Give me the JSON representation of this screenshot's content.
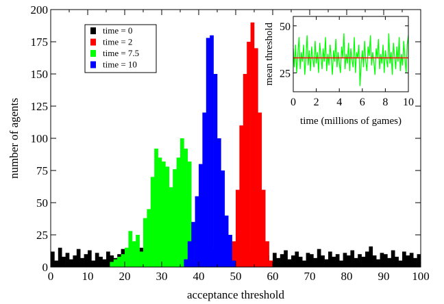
{
  "chart_data": [
    {
      "type": "bar",
      "xlabel": "acceptance threshold",
      "ylabel": "number of agents",
      "xlim": [
        0,
        100
      ],
      "ylim": [
        0,
        200
      ],
      "xticks": [
        "0",
        "10",
        "20",
        "30",
        "40",
        "50",
        "60",
        "70",
        "80",
        "90",
        "100"
      ],
      "yticks": [
        "0",
        "25",
        "50",
        "75",
        "100",
        "125",
        "150",
        "175",
        "200"
      ],
      "bin_width": 1,
      "legend_position": "top-left",
      "series": [
        {
          "name": "time = 0",
          "color": "#000000",
          "x": [
            0,
            1,
            2,
            3,
            4,
            5,
            6,
            7,
            8,
            9,
            10,
            11,
            12,
            13,
            14,
            15,
            16,
            17,
            18,
            19,
            20,
            21,
            22,
            23,
            24,
            25,
            26,
            27,
            28,
            29,
            30,
            31,
            32,
            33,
            34,
            35,
            36,
            37,
            38,
            39,
            40,
            41,
            42,
            43,
            44,
            45,
            46,
            47,
            48,
            49,
            50,
            51,
            52,
            53,
            54,
            55,
            56,
            57,
            58,
            59,
            60,
            61,
            62,
            63,
            64,
            65,
            66,
            67,
            68,
            69,
            70,
            71,
            72,
            73,
            74,
            75,
            76,
            77,
            78,
            79,
            80,
            81,
            82,
            83,
            84,
            85,
            86,
            87,
            88,
            89,
            90,
            91,
            92,
            93,
            94,
            95,
            96,
            97,
            98,
            99
          ],
          "values": [
            12,
            5,
            15,
            8,
            11,
            6,
            9,
            14,
            7,
            10,
            13,
            5,
            11,
            8,
            6,
            12,
            9,
            7,
            10,
            14,
            8,
            6,
            11,
            9,
            15,
            12,
            5,
            10,
            7,
            9,
            11,
            6,
            13,
            8,
            10,
            7,
            12,
            9,
            6,
            11,
            8,
            10,
            5,
            14,
            9,
            7,
            12,
            6,
            10,
            8,
            11,
            9,
            7,
            13,
            6,
            10,
            8,
            12,
            9,
            5,
            11,
            7,
            10,
            13,
            6,
            9,
            12,
            8,
            5,
            11,
            10,
            7,
            14,
            9,
            6,
            12,
            8,
            10,
            5,
            11,
            9,
            13,
            7,
            10,
            8,
            12,
            16,
            9,
            6,
            11,
            10,
            7,
            13,
            8,
            5,
            12,
            9,
            11,
            7,
            10
          ]
        },
        {
          "name": "time = 2",
          "color": "#ff0000",
          "x": [
            49,
            50,
            51,
            52,
            53,
            54,
            55,
            56,
            57,
            58,
            59
          ],
          "values": [
            20,
            60,
            110,
            150,
            175,
            190,
            170,
            120,
            60,
            20,
            5
          ]
        },
        {
          "name": "time = 7.5",
          "color": "#00ff00",
          "x": [
            16,
            17,
            18,
            19,
            20,
            21,
            22,
            23,
            24,
            25,
            26,
            27,
            28,
            29,
            30,
            31,
            32,
            33,
            34,
            35,
            36,
            37,
            38,
            39
          ],
          "values": [
            4,
            6,
            8,
            10,
            15,
            28,
            20,
            25,
            12,
            38,
            45,
            70,
            92,
            85,
            82,
            78,
            62,
            76,
            85,
            100,
            92,
            82,
            25,
            8
          ]
        },
        {
          "name": "time = 10",
          "color": "#0000ff",
          "x": [
            36,
            37,
            38,
            39,
            40,
            41,
            42,
            43,
            44,
            45,
            46,
            47,
            48,
            49
          ],
          "values": [
            6,
            20,
            35,
            55,
            80,
            120,
            178,
            180,
            150,
            100,
            75,
            40,
            25,
            5
          ]
        }
      ]
    },
    {
      "type": "line",
      "inset": true,
      "xlabel": "time (millions of games)",
      "ylabel": "mean threshold",
      "xlim": [
        0,
        10
      ],
      "ylim": [
        15,
        55
      ],
      "xticks": [
        "0",
        "2",
        "4",
        "6",
        "8",
        "10"
      ],
      "yticks": [
        "25",
        "50"
      ],
      "series": [
        {
          "name": "",
          "color": "#00ff00",
          "x": [
            0,
            0.1,
            0.2,
            0.3,
            0.4,
            0.5,
            0.6,
            0.7,
            0.8,
            0.9,
            1,
            1.1,
            1.2,
            1.3,
            1.4,
            1.5,
            1.6,
            1.7,
            1.8,
            1.9,
            2,
            2.1,
            2.2,
            2.3,
            2.4,
            2.5,
            2.6,
            2.7,
            2.8,
            2.9,
            3,
            3.1,
            3.2,
            3.3,
            3.4,
            3.5,
            3.6,
            3.7,
            3.8,
            3.9,
            4,
            4.1,
            4.2,
            4.3,
            4.4,
            4.5,
            4.6,
            4.7,
            4.8,
            4.9,
            5,
            5.1,
            5.2,
            5.3,
            5.4,
            5.5,
            5.6,
            5.7,
            5.8,
            5.9,
            6,
            6.1,
            6.2,
            6.3,
            6.4,
            6.5,
            6.6,
            6.7,
            6.8,
            6.9,
            7,
            7.1,
            7.2,
            7.3,
            7.4,
            7.5,
            7.6,
            7.7,
            7.8,
            7.9,
            8,
            8.1,
            8.2,
            8.3,
            8.4,
            8.5,
            8.6,
            8.7,
            8.8,
            8.9,
            9,
            9.1,
            9.2,
            9.3,
            9.4,
            9.5,
            9.6,
            9.7,
            9.8,
            9.9,
            10
          ],
          "values": [
            38,
            28,
            40,
            25,
            35,
            44,
            27,
            36,
            31,
            40,
            24,
            33,
            45,
            29,
            37,
            26,
            39,
            32,
            28,
            42,
            30,
            36,
            25,
            41,
            34,
            27,
            38,
            31,
            44,
            26,
            35,
            29,
            40,
            33,
            24,
            37,
            31,
            43,
            28,
            36,
            30,
            25,
            39,
            33,
            46,
            27,
            35,
            30,
            41,
            26,
            38,
            32,
            28,
            44,
            25,
            36,
            33,
            40,
            18,
            30,
            37,
            28,
            42,
            31,
            26,
            39,
            34,
            45,
            29,
            36,
            31,
            24,
            38,
            33,
            43,
            27,
            35,
            30,
            40,
            25,
            37,
            32,
            28,
            46,
            30,
            36,
            24,
            41,
            34,
            27,
            39,
            31,
            44,
            26,
            35,
            29,
            42,
            33,
            25,
            40,
            45
          ]
        },
        {
          "name": "",
          "color": "#ff0000",
          "x": [
            0,
            10
          ],
          "values": [
            33,
            33
          ]
        }
      ]
    }
  ]
}
